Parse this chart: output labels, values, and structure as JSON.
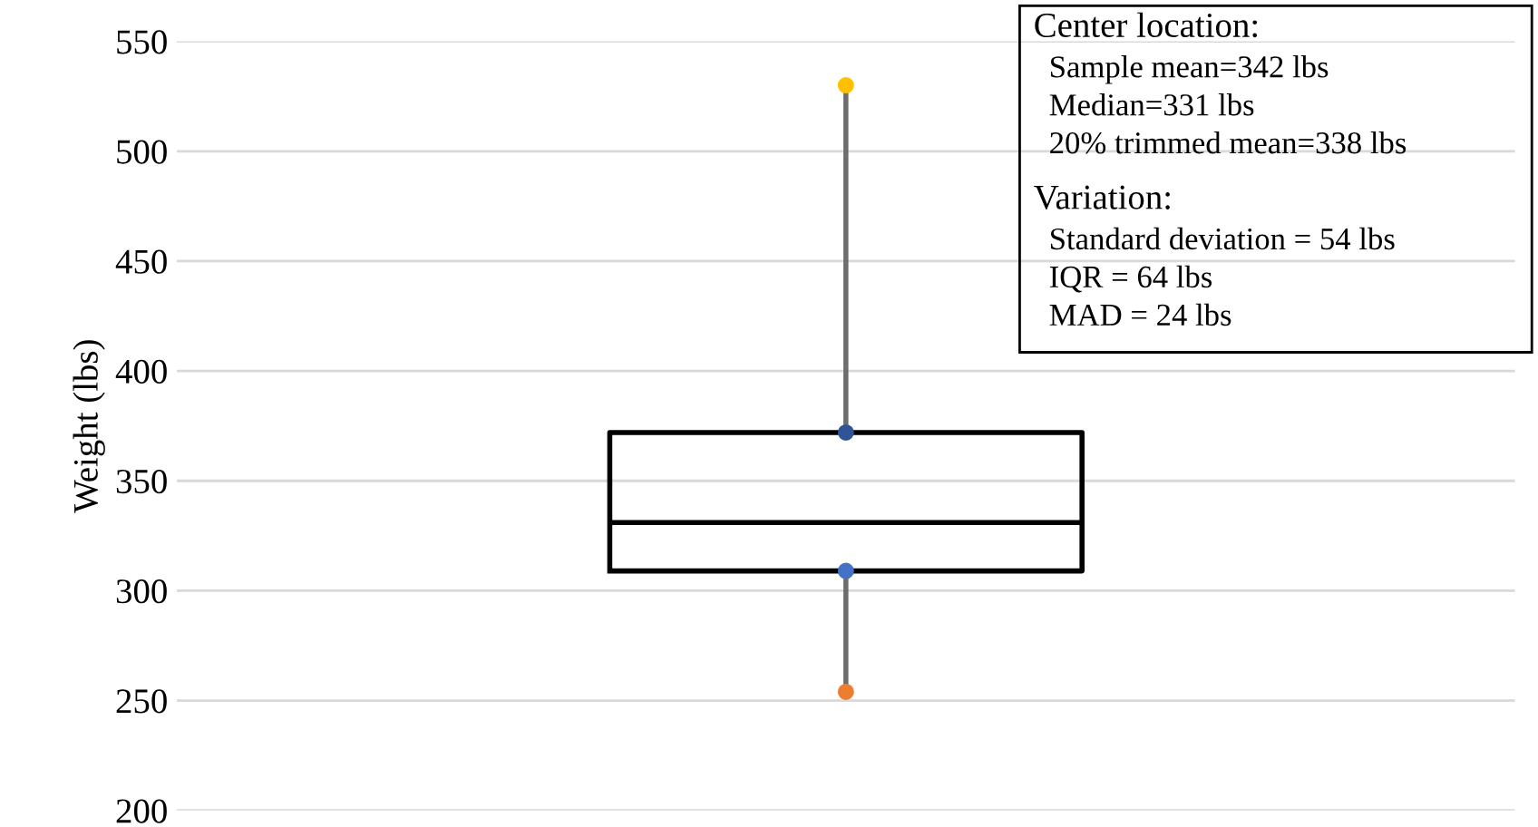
{
  "chart_data": {
    "type": "box",
    "ylabel": "Weight (lbs)",
    "categories": [
      null
    ],
    "boxes": [
      {
        "low": 254,
        "q1": 309,
        "median": 331,
        "q3": 372,
        "high": 530
      }
    ],
    "series": [
      {
        "type": "scatter",
        "values": [
          530
        ],
        "color": "#ffc000"
      },
      {
        "type": "scatter",
        "values": [
          372
        ],
        "color": "#2f5597"
      },
      {
        "type": "scatter",
        "values": [
          309
        ],
        "color": "#4472c4"
      },
      {
        "type": "scatter",
        "values": [
          254
        ],
        "color": "#ed7d31"
      }
    ],
    "ylim": [
      200,
      550
    ],
    "yticks": [
      200,
      250,
      300,
      350,
      400,
      450,
      500,
      550
    ],
    "grid": "y",
    "annotations": [
      "Center location:\nSample mean=342 lbs\nMedian=331 lbs\n20% trimmed mean=338 lbs",
      "Variation:\nStandard deviation = 54 lbs\nIQR = 64 lbs\nMAD = 24 lbs"
    ]
  }
}
